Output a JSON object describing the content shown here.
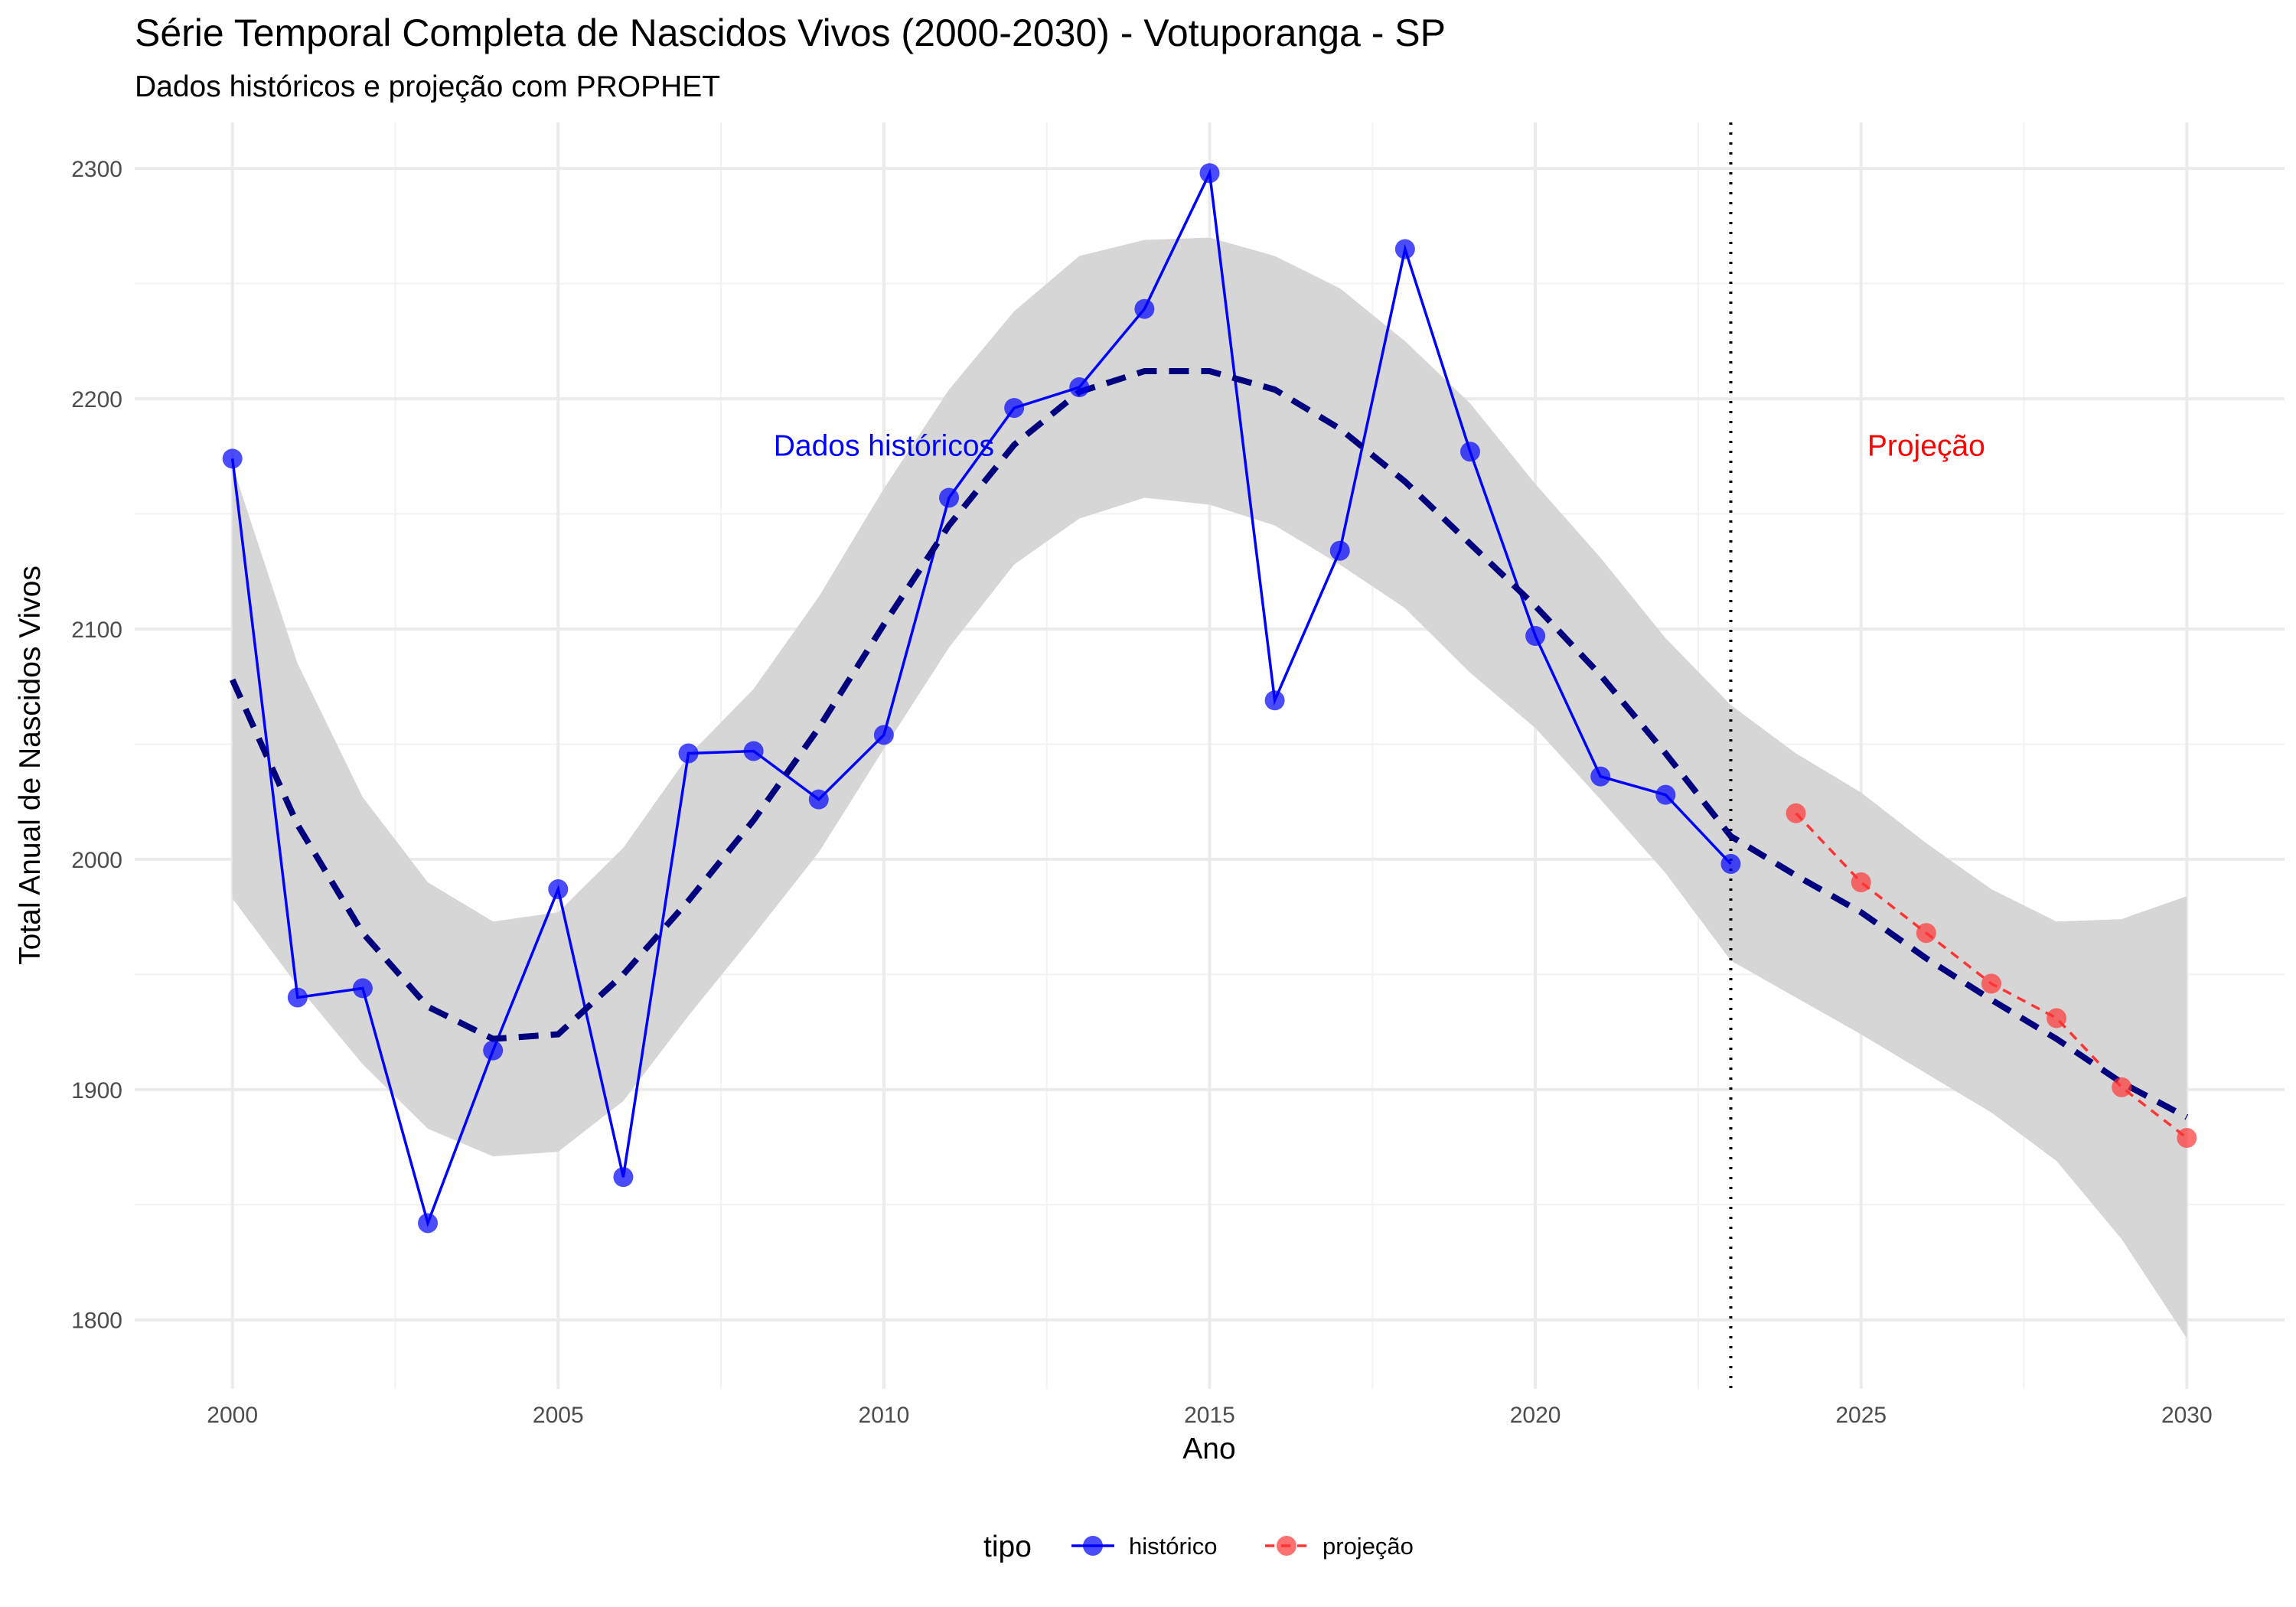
{
  "chart_data": {
    "type": "line",
    "title": "Série Temporal Completa de Nascidos Vivos (2000-2030) -  Votuporanga - SP",
    "subtitle": "Dados históricos e projeção com PROPHET",
    "xlabel": "Ano",
    "ylabel": "Total Anual de Nascidos Vivos",
    "xlim": [
      1998.5,
      2031.5
    ],
    "ylim": [
      1770,
      2320
    ],
    "x_ticks": [
      2000,
      2005,
      2010,
      2015,
      2020,
      2025,
      2030
    ],
    "y_ticks": [
      1800,
      1900,
      2000,
      2100,
      2200,
      2300
    ],
    "grid": true,
    "forecast_start_line": 2023,
    "annotations": [
      {
        "text": "Dados históricos",
        "x": 2010,
        "y": 2180,
        "color": "#0000ff"
      },
      {
        "text": "Projeção",
        "x": 2026,
        "y": 2180,
        "color": "#ff0000"
      }
    ],
    "series": [
      {
        "name": "histórico",
        "color": "#0000ff",
        "x": [
          2000,
          2001,
          2002,
          2003,
          2004,
          2005,
          2006,
          2007,
          2008,
          2009,
          2010,
          2011,
          2012,
          2013,
          2014,
          2015,
          2016,
          2017,
          2018,
          2019,
          2020,
          2021,
          2022,
          2023
        ],
        "values": [
          2174,
          1940,
          1944,
          1842,
          1917,
          1987,
          1862,
          2046,
          2047,
          2026,
          2054,
          2157,
          2196,
          2205,
          2239,
          2298,
          2069,
          2134,
          2265,
          2177,
          2097,
          2036,
          2028,
          1998
        ]
      },
      {
        "name": "projeção",
        "color": "#ff3333",
        "x": [
          2024,
          2025,
          2026,
          2027,
          2028,
          2029,
          2030
        ],
        "values": [
          2020,
          1990,
          1968,
          1946,
          1931,
          1901,
          1879
        ]
      }
    ],
    "trend": {
      "color": "#00007f",
      "x": [
        2000,
        2001,
        2002,
        2003,
        2004,
        2005,
        2006,
        2007,
        2008,
        2009,
        2010,
        2011,
        2012,
        2013,
        2014,
        2015,
        2016,
        2017,
        2018,
        2019,
        2020,
        2021,
        2022,
        2023,
        2024,
        2025,
        2026,
        2027,
        2028,
        2029,
        2030
      ],
      "values": [
        2078,
        2015,
        1968,
        1936,
        1922,
        1924,
        1950,
        1982,
        2017,
        2057,
        2102,
        2145,
        2180,
        2203,
        2212,
        2212,
        2204,
        2187,
        2164,
        2137,
        2110,
        2080,
        2046,
        2010,
        1993,
        1977,
        1957,
        1939,
        1922,
        1903,
        1888
      ],
      "band_lower": [
        1983,
        1945,
        1911,
        1883,
        1871,
        1873,
        1895,
        1932,
        1967,
        2003,
        2048,
        2092,
        2128,
        2148,
        2157,
        2154,
        2145,
        2128,
        2109,
        2081,
        2057,
        2026,
        1994,
        1956,
        1940,
        1924,
        1907,
        1890,
        1869,
        1835,
        1792
      ],
      "band_upper": [
        2171,
        2085,
        2027,
        1990,
        1973,
        1977,
        2005,
        2045,
        2074,
        2114,
        2161,
        2204,
        2238,
        2262,
        2269,
        2270,
        2262,
        2248,
        2225,
        2198,
        2163,
        2131,
        2096,
        2067,
        2046,
        2029,
        2007,
        1987,
        1973,
        1974,
        1984
      ]
    },
    "legend": {
      "title": "tipo",
      "placement": "bottom",
      "entries": [
        "histórico",
        "projeção"
      ]
    }
  }
}
